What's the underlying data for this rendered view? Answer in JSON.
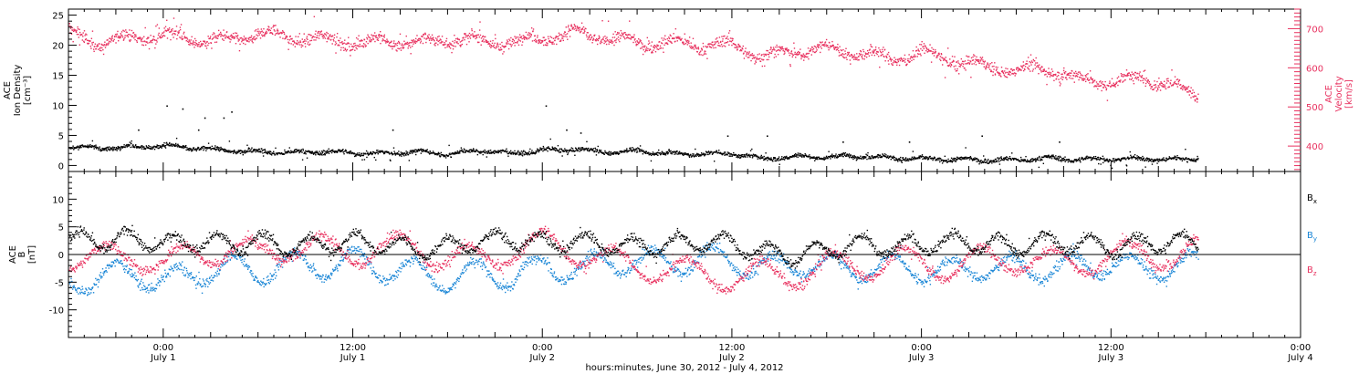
{
  "x_axis": {
    "title": "hours:minutes, June 30, 2012 - July  4, 2012",
    "tick_times": [
      "0:00",
      "12:00",
      "0:00",
      "12:00",
      "0:00",
      "12:00",
      "0:00"
    ],
    "tick_days": [
      "July 1",
      "July 1",
      "July 2",
      "July 2",
      "July 3",
      "July 3",
      "July 4"
    ],
    "tick_hours": [
      0,
      12,
      24,
      36,
      48,
      60,
      72
    ]
  },
  "chart_data": [
    {
      "type": "scatter",
      "panel": "plasma",
      "xlim_hours": [
        -6,
        72
      ],
      "left_axis": {
        "label_lines": [
          "ACE",
          "Ion Density",
          "[cm⁻³]"
        ],
        "ylim": [
          -1,
          26
        ],
        "ticks": [
          0,
          5,
          10,
          15,
          20,
          25
        ],
        "tick_labels": [
          "0",
          "5",
          "10",
          "15",
          "20",
          "25"
        ]
      },
      "right_axis": {
        "label_lines": [
          "ACE",
          "Velocity",
          "[km/s]"
        ],
        "ylim": [
          335,
          750
        ],
        "ticks": [
          400,
          500,
          600,
          700
        ],
        "tick_labels": [
          "400",
          "500",
          "600",
          "700"
        ],
        "color": "#e8315f"
      },
      "series": [
        {
          "role": "density",
          "axis": "left",
          "color": "#000000",
          "x": [
            -6,
            -4,
            -2,
            0,
            2,
            4,
            6,
            8,
            10,
            12,
            14,
            16,
            18,
            20,
            22,
            24,
            26,
            28,
            30,
            32,
            34,
            36,
            38,
            40,
            42,
            44,
            46,
            48,
            50,
            52,
            54,
            56,
            58,
            60,
            62,
            64,
            65.5
          ],
          "y": [
            3.2,
            3.0,
            3.2,
            3.4,
            3.0,
            2.6,
            2.4,
            2.2,
            2.4,
            2.2,
            2.1,
            2.4,
            2.0,
            2.6,
            2.1,
            2.6,
            2.8,
            2.3,
            2.5,
            2.1,
            2.0,
            2.1,
            1.2,
            1.6,
            1.5,
            1.7,
            1.4,
            1.2,
            1.1,
            1.0,
            1.0,
            1.3,
            1.1,
            1.2,
            1.2,
            1.1,
            1.3
          ],
          "spikes": [
            [
              -1.6,
              6
            ],
            [
              0.2,
              10
            ],
            [
              1.2,
              9.5
            ],
            [
              2.6,
              8
            ],
            [
              3.8,
              8
            ],
            [
              4.3,
              9
            ],
            [
              2.2,
              6
            ],
            [
              14.5,
              6
            ],
            [
              24.2,
              10
            ],
            [
              25.5,
              6
            ],
            [
              26.4,
              5.5
            ],
            [
              35.7,
              5
            ],
            [
              38.2,
              5
            ],
            [
              43.0,
              4
            ],
            [
              47.2,
              4
            ],
            [
              51.8,
              5
            ],
            [
              56.7,
              4
            ]
          ]
        },
        {
          "role": "velocity",
          "axis": "right",
          "color": "#e8315f",
          "x": [
            -6,
            -4,
            -2,
            0,
            2,
            4,
            6,
            8,
            10,
            12,
            14,
            16,
            18,
            20,
            22,
            24,
            26,
            28,
            30,
            32,
            34,
            36,
            38,
            40,
            42,
            44,
            46,
            48,
            50,
            52,
            54,
            56,
            58,
            60,
            62,
            64,
            65.5
          ],
          "y": [
            690,
            665,
            680,
            685,
            675,
            670,
            690,
            680,
            675,
            665,
            670,
            665,
            675,
            670,
            665,
            680,
            690,
            680,
            665,
            665,
            660,
            660,
            630,
            645,
            650,
            640,
            625,
            640,
            620,
            605,
            595,
            600,
            570,
            565,
            575,
            555,
            530
          ]
        }
      ]
    },
    {
      "type": "scatter",
      "panel": "magnetic",
      "xlim_hours": [
        -6,
        72
      ],
      "left_axis": {
        "label_lines": [
          "ACE",
          "B",
          "[nT]"
        ],
        "ylim": [
          -15,
          15
        ],
        "ticks": [
          -10,
          -5,
          0,
          5,
          10
        ],
        "tick_labels": [
          "-10",
          "-5",
          "0",
          "5",
          "10"
        ]
      },
      "zero_line": 0,
      "legend_position": "right",
      "series": [
        {
          "name": "Bx",
          "label_main": "B",
          "label_sub": "x",
          "color": "#000000",
          "x": [
            -6,
            -4,
            -2,
            0,
            2,
            4,
            6,
            8,
            10,
            12,
            14,
            16,
            18,
            20,
            22,
            24,
            26,
            28,
            30,
            32,
            34,
            36,
            38,
            40,
            42,
            44,
            46,
            48,
            50,
            52,
            54,
            56,
            58,
            60,
            62,
            64,
            65.5
          ],
          "y": [
            3.0,
            2.5,
            3.0,
            2.0,
            2.5,
            2.0,
            2.5,
            1.5,
            2.0,
            2.5,
            2.0,
            1.0,
            1.5,
            2.5,
            3.0,
            2.0,
            2.5,
            2.0,
            1.5,
            2.0,
            2.5,
            2.0,
            0.5,
            0.0,
            1.0,
            2.0,
            1.5,
            2.0,
            2.5,
            2.0,
            1.5,
            2.5,
            2.0,
            1.5,
            2.0,
            2.5,
            2.0
          ]
        },
        {
          "name": "By",
          "label_main": "B",
          "label_sub": "y",
          "color": "#1a86d6",
          "x": [
            -6,
            -4,
            -2,
            0,
            2,
            4,
            6,
            8,
            10,
            12,
            14,
            16,
            18,
            20,
            22,
            24,
            26,
            28,
            30,
            32,
            34,
            36,
            38,
            40,
            42,
            44,
            46,
            48,
            50,
            52,
            54,
            56,
            58,
            60,
            62,
            64,
            65.5
          ],
          "y": [
            -5.0,
            -4.0,
            -3.0,
            -5.0,
            -3.5,
            -2.0,
            -3.0,
            -1.5,
            -2.0,
            -1.0,
            -2.5,
            -3.0,
            -4.5,
            -3.0,
            -4.0,
            -2.0,
            -2.5,
            -1.5,
            -1.0,
            -1.5,
            -0.5,
            -1.0,
            -2.5,
            -1.5,
            -2.0,
            -2.5,
            -2.0,
            -2.5,
            -3.0,
            -2.0,
            -2.5,
            -2.5,
            -2.0,
            -1.5,
            -2.5,
            -2.0,
            -1.5
          ]
        },
        {
          "name": "Bz",
          "label_main": "B",
          "label_sub": "z",
          "color": "#e8315f",
          "x": [
            -6,
            -4,
            -2,
            0,
            2,
            4,
            6,
            8,
            10,
            12,
            14,
            16,
            18,
            20,
            22,
            24,
            26,
            28,
            30,
            32,
            34,
            36,
            38,
            40,
            42,
            44,
            46,
            48,
            50,
            52,
            54,
            56,
            58,
            60,
            62,
            64,
            65.5
          ],
          "y": [
            0.0,
            -1.0,
            0.5,
            -2.0,
            0.5,
            1.0,
            0.0,
            2.0,
            1.0,
            0.5,
            1.0,
            1.5,
            -0.5,
            -1.0,
            1.0,
            2.0,
            1.0,
            -1.0,
            -2.0,
            -2.5,
            -3.5,
            -4.0,
            -3.5,
            -3.5,
            -2.0,
            -2.0,
            -1.0,
            -1.5,
            -2.0,
            -1.0,
            -0.5,
            -1.5,
            -1.0,
            -0.5,
            0.5,
            0.0,
            0.5
          ]
        }
      ]
    }
  ]
}
